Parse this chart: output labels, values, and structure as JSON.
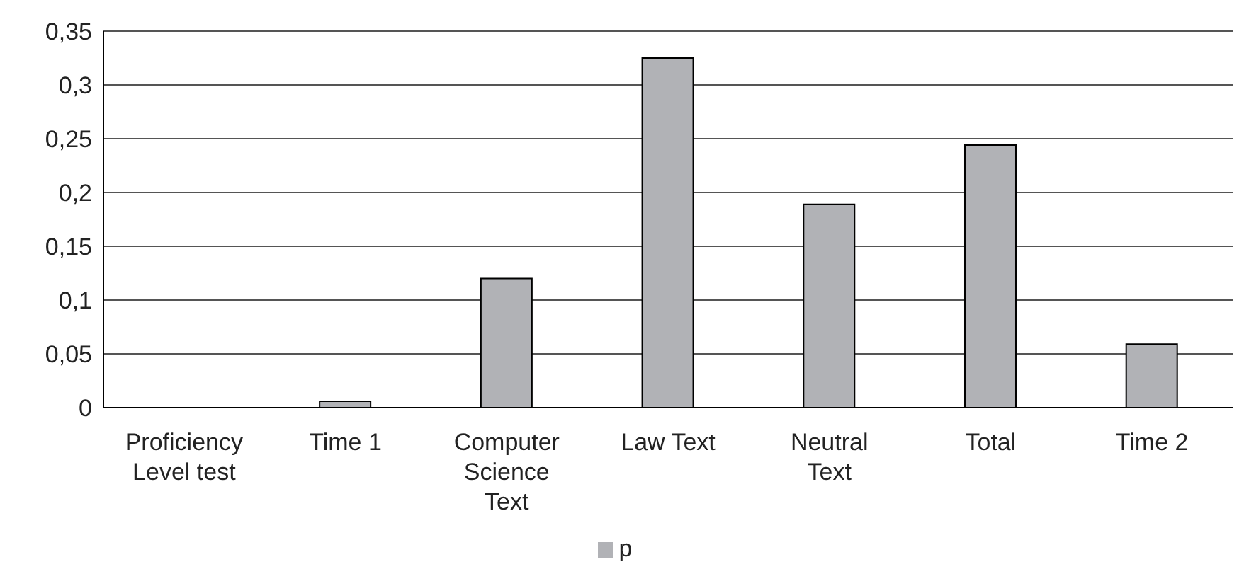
{
  "chart_data": {
    "type": "bar",
    "categories": [
      "Proficiency Level test",
      "Time 1",
      "Computer Science Text",
      "Law Text",
      "Neutral Text",
      "Total",
      "Time 2"
    ],
    "series": [
      {
        "name": "p",
        "color": "#b1b2b6",
        "values": [
          0,
          0.006,
          0.12,
          0.325,
          0.189,
          0.244,
          0.059
        ]
      }
    ],
    "ylim": [
      0,
      0.35
    ],
    "yticks": [
      {
        "value": 0,
        "label": "0"
      },
      {
        "value": 0.05,
        "label": "0,05"
      },
      {
        "value": 0.1,
        "label": "0,1"
      },
      {
        "value": 0.15,
        "label": "0,15"
      },
      {
        "value": 0.2,
        "label": "0,2"
      },
      {
        "value": 0.25,
        "label": "0,25"
      },
      {
        "value": 0.3,
        "label": "0,3"
      },
      {
        "value": 0.35,
        "label": "0,35"
      }
    ],
    "grid": "y",
    "legend": "bottom"
  }
}
